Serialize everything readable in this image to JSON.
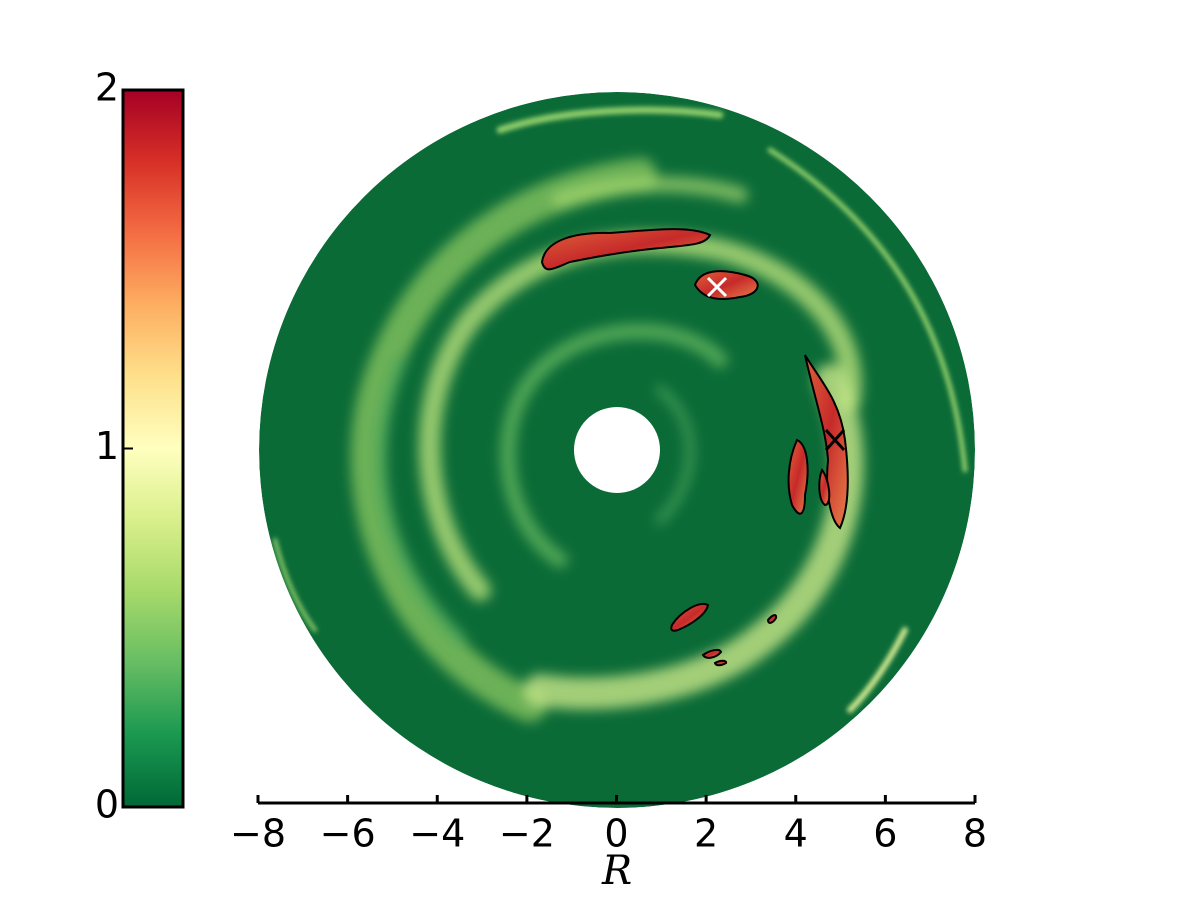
{
  "chart_data": {
    "type": "heatmap",
    "xlabel": "R",
    "xlim": [
      -8,
      8
    ],
    "xticks": [
      {
        "value": -8,
        "label": "−8"
      },
      {
        "value": -6,
        "label": "−6"
      },
      {
        "value": -4,
        "label": "−4"
      },
      {
        "value": -2,
        "label": "−2"
      },
      0,
      2,
      4,
      6,
      8
    ],
    "colorbar": {
      "lim": [
        0,
        2
      ],
      "ticks": [
        0,
        1,
        2
      ],
      "colors": [
        "#006837",
        "#1a9850",
        "#66bd63",
        "#a6d96a",
        "#d9ef8b",
        "#ffffbf",
        "#fee08b",
        "#fdae61",
        "#f46d43",
        "#d73027",
        "#a50026"
      ]
    }
  }
}
